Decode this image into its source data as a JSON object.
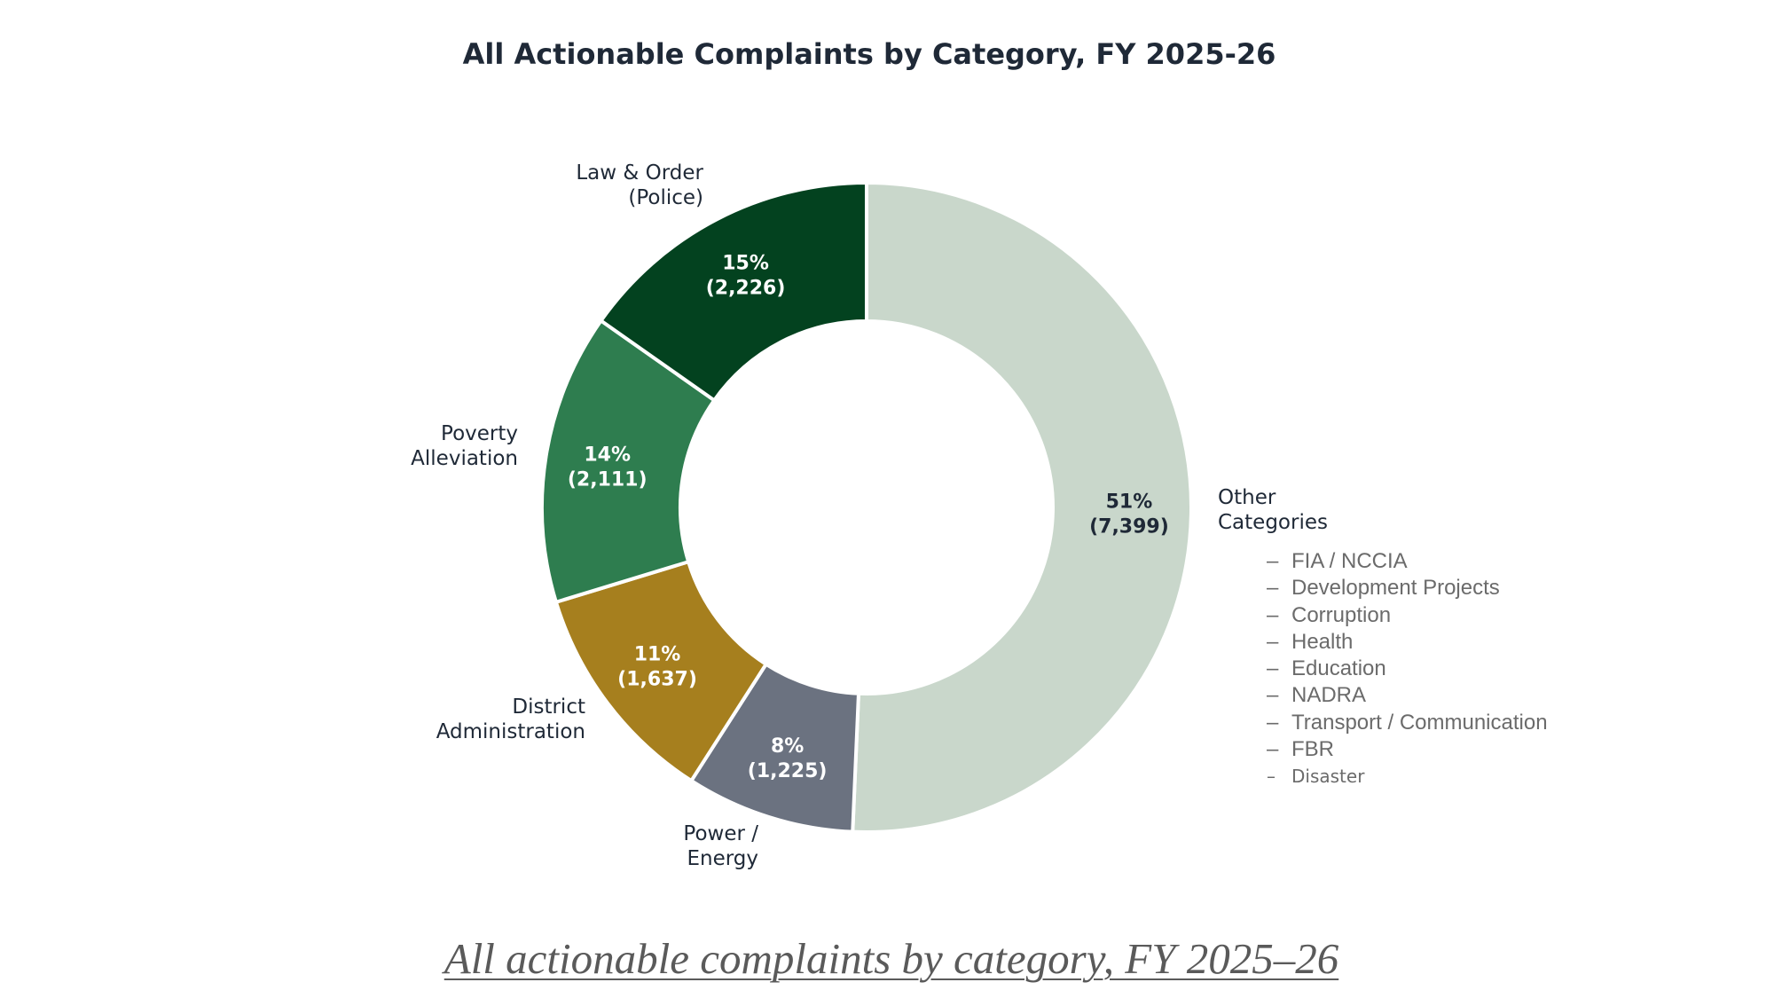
{
  "chart_data": {
    "type": "pie",
    "variant": "donut",
    "title": "All Actionable Complaints by Category, FY 2025-26",
    "slices": [
      {
        "label": [
          "Other",
          "Categories"
        ],
        "percent": "51%",
        "count": "(7,399)",
        "value": 7399,
        "color": "#c9d7cb",
        "text_color": "#1f2937"
      },
      {
        "label": [
          "Power /",
          "Energy"
        ],
        "percent": "8%",
        "count": "(1,225)",
        "value": 1225,
        "color": "#6b7280",
        "text_color": "#ffffff"
      },
      {
        "label": [
          "District",
          "Administration"
        ],
        "percent": "11%",
        "count": "(1,637)",
        "value": 1637,
        "color": "#a67f1e",
        "text_color": "#ffffff"
      },
      {
        "label": [
          "Poverty",
          "Alleviation"
        ],
        "percent": "14%",
        "count": "(2,111)",
        "value": 2111,
        "color": "#2e7d4f",
        "text_color": "#ffffff"
      },
      {
        "label": [
          "Law & Order",
          "(Police)"
        ],
        "percent": "15%",
        "count": "(2,226)",
        "value": 2226,
        "color": "#03421f",
        "text_color": "#ffffff"
      }
    ],
    "other_categories": [
      "FIA / NCCIA",
      "Development Projects",
      "Corruption",
      "Health",
      "Education",
      "NADRA",
      "Transport / Communication",
      "FBR",
      "Disaster"
    ],
    "list_marker": "–"
  },
  "caption": "All actionable complaints by category, FY 2025–26",
  "colors": {
    "title": "#1f2937",
    "label": "#1f2937",
    "list": "#6b6b6b",
    "caption": "#5a5a5a"
  }
}
